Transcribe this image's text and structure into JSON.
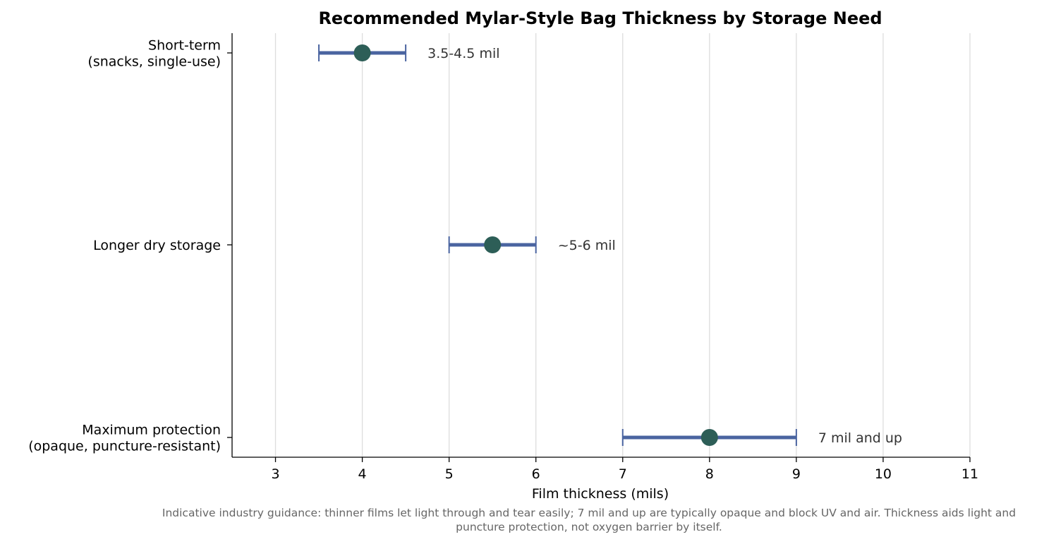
{
  "chart_data": {
    "type": "range",
    "title": "Recommended Mylar-Style Bag Thickness by Storage Need",
    "xlabel": "Film thickness (mils)",
    "ylabel": "",
    "xlim": [
      2.5,
      11
    ],
    "xticks": [
      "3",
      "4",
      "5",
      "6",
      "7",
      "8",
      "9",
      "10",
      "11"
    ],
    "grid": "vertical",
    "categories": [
      {
        "lines": [
          "Short-term",
          "(snacks, single-use)"
        ],
        "low": 3.5,
        "high": 4.5,
        "point": 4,
        "label": "3.5-4.5 mil"
      },
      {
        "lines": [
          "Longer dry storage"
        ],
        "low": 5,
        "high": 6,
        "point": 5.5,
        "label": "~5-6 mil"
      },
      {
        "lines": [
          "Maximum protection",
          "(opaque, puncture-resistant)"
        ],
        "low": 7,
        "high": 9,
        "point": 8,
        "label": "7 mil and up"
      }
    ],
    "footnote_lines": [
      "Indicative industry guidance: thinner films let light through and tear easily; 7 mil and up are typically opaque and block UV and air. Thickness aids light and",
      "puncture protection, not oxygen barrier by itself."
    ],
    "colors": {
      "range_bar": "#4a64a0",
      "point": "#2d5e57",
      "grid": "#dddddd",
      "axis": "#000000"
    }
  }
}
